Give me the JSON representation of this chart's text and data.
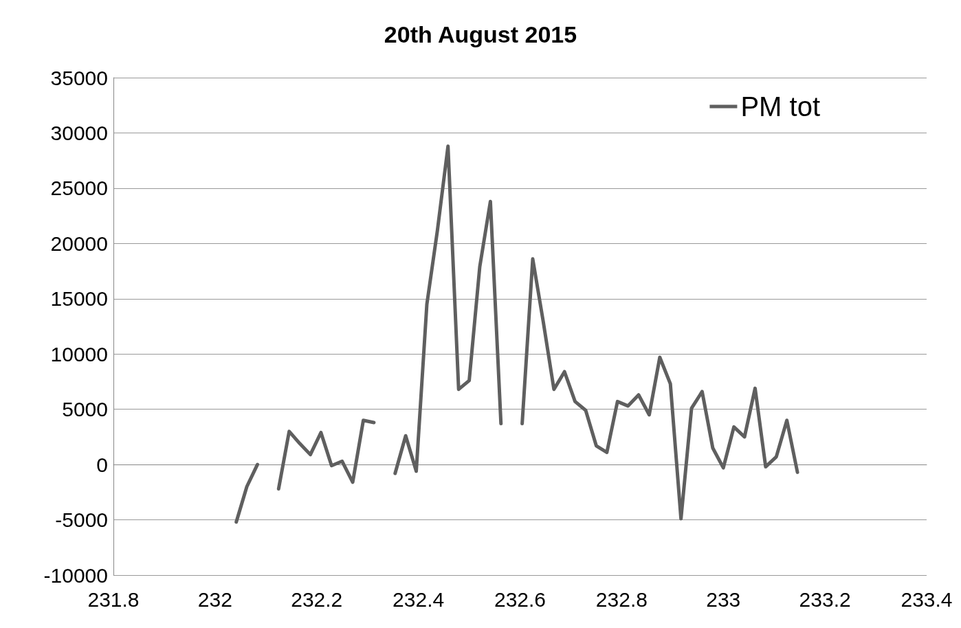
{
  "chart_data": {
    "type": "line",
    "title": "20th August 2015",
    "x": [
      232.0417,
      232.0625,
      232.0833,
      232.1042,
      232.125,
      232.1458,
      232.1667,
      232.1875,
      232.2083,
      232.2292,
      232.25,
      232.2708,
      232.2917,
      232.3125,
      232.3333,
      232.3542,
      232.375,
      232.3958,
      232.4167,
      232.4375,
      232.4583,
      232.4792,
      232.5,
      232.5208,
      232.5417,
      232.5625,
      232.5833,
      232.6042,
      232.625,
      232.6458,
      232.6667,
      232.6875,
      232.7083,
      232.7292,
      232.75,
      232.7708,
      232.7917,
      232.8125,
      232.8333,
      232.8542,
      232.875,
      232.8958,
      232.9167,
      232.9375,
      232.9583,
      232.9792,
      233,
      233.0208,
      233.0417,
      233.0625,
      233.0833,
      233.1042,
      233.125,
      233.1458
    ],
    "series": [
      {
        "name": "PM tot",
        "color": "#5f5f5f",
        "values": [
          -5200,
          -2000,
          0,
          null,
          -2200,
          3000,
          1900,
          900,
          2900,
          -100,
          300,
          -1600,
          4000,
          3800,
          null,
          -800,
          2600,
          -600,
          14500,
          21200,
          28800,
          6800,
          7600,
          17900,
          23800,
          3700,
          null,
          3700,
          18600,
          12900,
          6800,
          8400,
          5700,
          4900,
          1700,
          1100,
          5700,
          5300,
          6300,
          4500,
          9700,
          7300,
          -4900,
          5100,
          6600,
          1500,
          -300,
          3400,
          2500,
          6900,
          -200,
          700,
          4000,
          -700
        ]
      }
    ],
    "xlim": [
      231.8,
      233.4
    ],
    "xticks": [
      231.8,
      232,
      232.2,
      232.4,
      232.6,
      232.8,
      233,
      233.2,
      233.4
    ],
    "ylim": [
      -10000,
      35000
    ],
    "yticks": [
      -10000,
      -5000,
      0,
      5000,
      10000,
      15000,
      20000,
      25000,
      30000,
      35000
    ],
    "grid": "y",
    "legend": "top right",
    "marker": "none",
    "line_style": "solid"
  }
}
